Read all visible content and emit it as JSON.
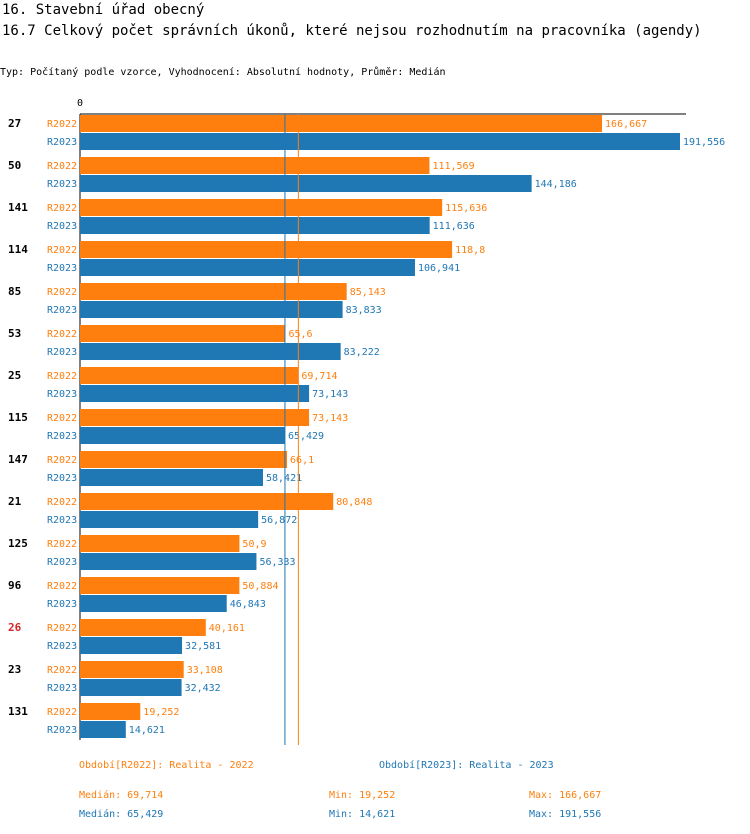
{
  "header": {
    "title": "16. Stavební úřad obecný",
    "subtitle": "16.7 Celkový počet správních úkonů, které nejsou rozhodnutím na pracovníka (agendy)",
    "type_line": "Typ: Počítaný podle vzorce, Vyhodnocení: Absolutní hodnoty, Průměr: Medián"
  },
  "colors": {
    "r2022": "#ff7f0e",
    "r2023": "#1f77b4",
    "highlight": "#d62728"
  },
  "chart_data": {
    "type": "bar",
    "orientation": "horizontal",
    "axis_zero_label": "0",
    "xlim": [
      0,
      195
    ],
    "highlighted_category": "26",
    "categories": [
      "27",
      "50",
      "141",
      "114",
      "85",
      "53",
      "25",
      "115",
      "147",
      "21",
      "125",
      "96",
      "26",
      "23",
      "131"
    ],
    "series": [
      {
        "name": "R2022",
        "values": [
          166.667,
          111.569,
          115.636,
          118.8,
          85.143,
          65.6,
          69.714,
          73.143,
          66.1,
          80.848,
          50.9,
          50.884,
          40.161,
          33.108,
          19.252
        ],
        "labels": [
          "166,667",
          "111,569",
          "115,636",
          "118,8",
          "85,143",
          "65,6",
          "69,714",
          "73,143",
          "66,1",
          "80,848",
          "50,9",
          "50,884",
          "40,161",
          "33,108",
          "19,252"
        ]
      },
      {
        "name": "R2023",
        "values": [
          191.556,
          144.186,
          111.636,
          106.941,
          83.833,
          83.222,
          73.143,
          65.429,
          58.421,
          56.872,
          56.333,
          46.843,
          32.581,
          32.432,
          14.621
        ],
        "labels": [
          "191,556",
          "144,186",
          "111,636",
          "106,941",
          "83,833",
          "83,222",
          "73,143",
          "65,429",
          "58,421",
          "56,872",
          "56,333",
          "46,843",
          "32,581",
          "32,432",
          "14,621"
        ]
      }
    ],
    "reference_lines": [
      {
        "series": "R2022",
        "type": "median",
        "value": 69.714
      },
      {
        "series": "R2023",
        "type": "median",
        "value": 65.429
      }
    ]
  },
  "legend": {
    "r2022": {
      "period": "Období[R2022]: Realita - 2022",
      "median": "Medián: 69,714",
      "min": "Min: 19,252",
      "max": "Max: 166,667"
    },
    "r2023": {
      "period": "Období[R2023]: Realita - 2023",
      "median": "Medián: 65,429",
      "min": "Min: 14,621",
      "max": "Max: 191,556"
    }
  }
}
